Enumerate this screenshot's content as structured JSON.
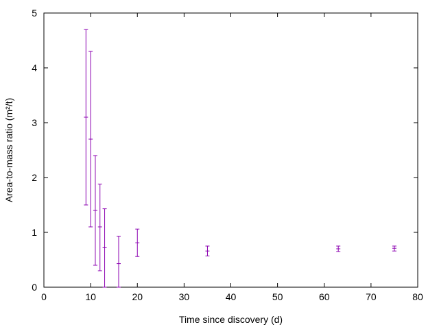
{
  "chart_data": {
    "type": "scatter",
    "title": "",
    "xlabel": "Time since discovery (d)",
    "ylabel": "Area-to-mass ratio (m²/t)",
    "xlim": [
      0,
      80
    ],
    "ylim": [
      0,
      5
    ],
    "x_ticks": [
      0,
      10,
      20,
      30,
      40,
      50,
      60,
      70,
      80
    ],
    "y_ticks": [
      0,
      1,
      2,
      3,
      4,
      5
    ],
    "x_tick_labels": [
      "0",
      "10",
      "20",
      "30",
      "40",
      "50",
      "60",
      "70",
      "80"
    ],
    "y_tick_labels": [
      "0",
      "1",
      "2",
      "3",
      "4",
      "5"
    ],
    "grid": false,
    "legend": "none",
    "error_bars": true,
    "series": [
      {
        "color": "#8B00B0",
        "points": [
          {
            "x": 9,
            "y": 3.1,
            "ylow": 1.5,
            "yhigh": 4.7
          },
          {
            "x": 10,
            "y": 2.7,
            "ylow": 1.1,
            "yhigh": 4.3
          },
          {
            "x": 11,
            "y": 1.4,
            "ylow": 0.4,
            "yhigh": 2.4
          },
          {
            "x": 12,
            "y": 1.1,
            "ylow": 0.3,
            "yhigh": 1.88
          },
          {
            "x": 13,
            "y": 0.72,
            "ylow": 0.0,
            "yhigh": 1.43
          },
          {
            "x": 16,
            "y": 0.43,
            "ylow": 0.0,
            "yhigh": 0.93
          },
          {
            "x": 20,
            "y": 0.81,
            "ylow": 0.56,
            "yhigh": 1.06
          },
          {
            "x": 35,
            "y": 0.66,
            "ylow": 0.57,
            "yhigh": 0.75
          },
          {
            "x": 63,
            "y": 0.7,
            "ylow": 0.65,
            "yhigh": 0.75
          },
          {
            "x": 75,
            "y": 0.71,
            "ylow": 0.66,
            "yhigh": 0.75
          }
        ]
      }
    ]
  }
}
